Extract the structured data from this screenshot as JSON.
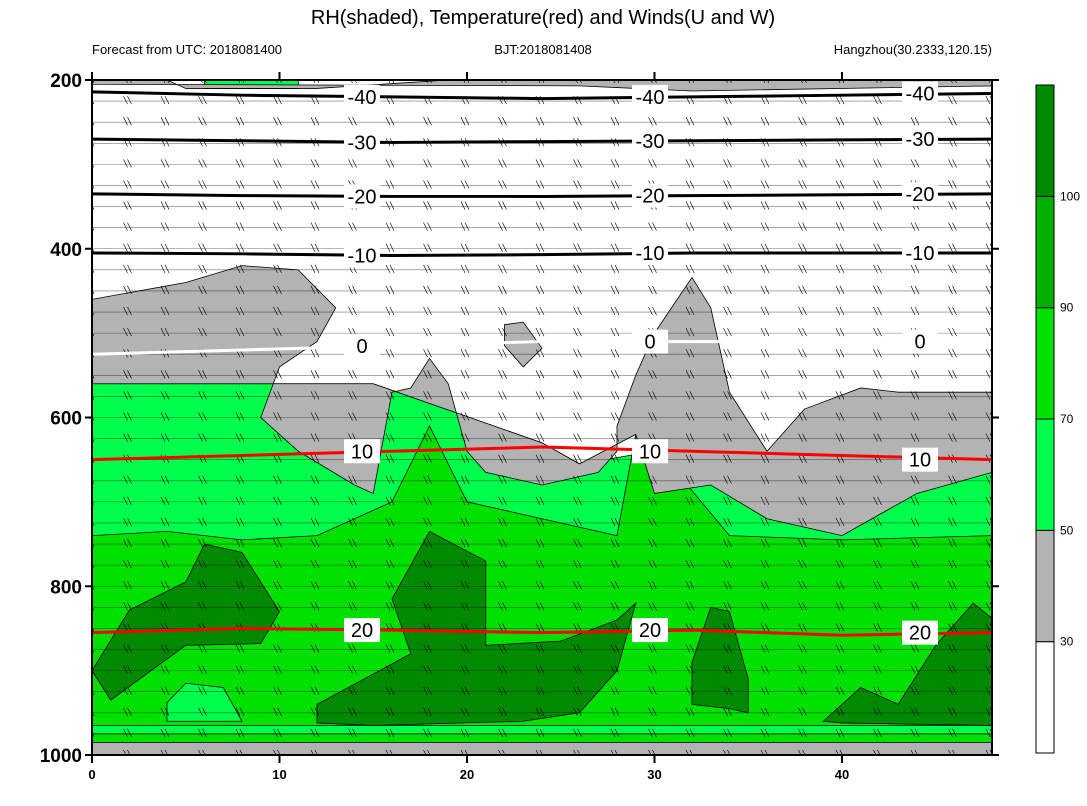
{
  "chart_data": {
    "type": "contour",
    "title": "RH(shaded), Temperature(red) and Winds(U and W)",
    "subtitle_left": "Forecast from UTC: 2018081400",
    "subtitle_center": "BJT:2018081408",
    "subtitle_right": "Hangzhou(30.2333,120.15)",
    "x": {
      "range": [
        0,
        48
      ],
      "ticks": [
        0,
        10,
        20,
        30,
        40
      ],
      "tick_labels": [
        "0",
        "10",
        "20",
        "30",
        "40"
      ]
    },
    "y": {
      "scale": "linear",
      "inverted": true,
      "range": [
        200,
        1000
      ],
      "ticks": [
        200,
        400,
        600,
        800,
        1000
      ],
      "tick_labels": [
        "200",
        "400",
        "600",
        "800",
        "1000"
      ]
    },
    "rh_colorbar": {
      "levels": [
        30,
        50,
        70,
        90,
        100
      ],
      "labels": [
        "30",
        "50",
        "70",
        "90",
        "100"
      ],
      "colors": [
        "#ffffff",
        "#b3b3b3",
        "#00ff4c",
        "#00e100",
        "#00b000",
        "#008a00"
      ]
    },
    "rh_shading": [
      {
        "color": "#00ff4c",
        "polygon": [
          [
            0,
            560
          ],
          [
            15,
            560
          ],
          [
            24,
            630
          ],
          [
            26,
            655
          ],
          [
            30,
            640
          ],
          [
            38,
            700
          ],
          [
            48,
            665
          ],
          [
            48,
            1000
          ],
          [
            0,
            1000
          ]
        ]
      },
      {
        "color": "#00e100",
        "polygon": [
          [
            0,
            740
          ],
          [
            4,
            735
          ],
          [
            8,
            745
          ],
          [
            12,
            740
          ],
          [
            16,
            700
          ],
          [
            18,
            610
          ],
          [
            20,
            700
          ],
          [
            24,
            720
          ],
          [
            28,
            740
          ],
          [
            29,
            620
          ],
          [
            31,
            660
          ],
          [
            34,
            740
          ],
          [
            40,
            745
          ],
          [
            48,
            740
          ],
          [
            48,
            965
          ],
          [
            0,
            965
          ]
        ]
      },
      {
        "color": "#008a00",
        "polygon": [
          [
            0,
            900
          ],
          [
            2,
            828
          ],
          [
            5,
            795
          ],
          [
            6,
            750
          ],
          [
            8,
            760
          ],
          [
            10,
            830
          ],
          [
            9,
            868
          ],
          [
            5,
            870
          ],
          [
            1,
            935
          ]
        ]
      },
      {
        "color": "#008a00",
        "polygon": [
          [
            12,
            940
          ],
          [
            17,
            880
          ],
          [
            16,
            815
          ],
          [
            18,
            735
          ],
          [
            21,
            770
          ],
          [
            21,
            870
          ],
          [
            25,
            865
          ],
          [
            28,
            840
          ],
          [
            29,
            820
          ],
          [
            28,
            900
          ],
          [
            26,
            950
          ],
          [
            23,
            960
          ],
          [
            15,
            965
          ],
          [
            12,
            962
          ]
        ]
      },
      {
        "color": "#008a00",
        "polygon": [
          [
            32,
            890
          ],
          [
            33,
            825
          ],
          [
            34,
            830
          ],
          [
            35,
            910
          ],
          [
            35,
            950
          ],
          [
            34,
            945
          ],
          [
            32,
            940
          ]
        ]
      },
      {
        "color": "#008a00",
        "polygon": [
          [
            39,
            960
          ],
          [
            41,
            920
          ],
          [
            43,
            940
          ],
          [
            45,
            870
          ],
          [
            47,
            820
          ],
          [
            48,
            838
          ],
          [
            48,
            965
          ],
          [
            40,
            962
          ]
        ]
      },
      {
        "color": "#00ff4c",
        "polygon": [
          [
            4,
            938
          ],
          [
            5,
            915
          ],
          [
            7,
            920
          ],
          [
            8,
            960
          ],
          [
            4,
            960
          ]
        ]
      },
      {
        "color": "#00e100",
        "polygon": [
          [
            0,
            975
          ],
          [
            48,
            975
          ],
          [
            48,
            985
          ],
          [
            0,
            985
          ]
        ]
      },
      {
        "color": "#00ff4c",
        "polygon": [
          [
            6,
            210
          ],
          [
            11,
            210
          ],
          [
            11,
            200
          ],
          [
            6,
            200
          ]
        ]
      },
      {
        "color": "#00ff4c",
        "polygon": [
          [
            42,
            207
          ],
          [
            48,
            207
          ],
          [
            48,
            200
          ],
          [
            42,
            200
          ]
        ]
      },
      {
        "color": "#00ff4c",
        "polygon": [
          [
            7,
            503
          ],
          [
            10,
            500
          ],
          [
            10,
            530
          ],
          [
            8,
            531
          ]
        ]
      }
    ],
    "gray_regions": [
      {
        "color": "#b3b3b3",
        "polygon": [
          [
            0,
            460
          ],
          [
            5,
            440
          ],
          [
            8,
            420
          ],
          [
            11,
            425
          ],
          [
            13,
            470
          ],
          [
            12,
            510
          ],
          [
            10,
            540
          ],
          [
            9,
            600
          ],
          [
            11,
            640
          ],
          [
            14,
            680
          ],
          [
            15,
            690
          ],
          [
            16,
            570
          ],
          [
            17,
            565
          ],
          [
            18,
            530
          ],
          [
            19,
            560
          ],
          [
            20,
            640
          ],
          [
            21,
            665
          ],
          [
            24,
            680
          ],
          [
            27,
            665
          ],
          [
            28,
            640
          ],
          [
            28,
            610
          ],
          [
            29,
            550
          ],
          [
            30,
            500
          ],
          [
            31,
            467
          ],
          [
            32,
            434
          ],
          [
            33,
            470
          ],
          [
            34,
            570
          ],
          [
            36,
            640
          ],
          [
            38,
            590
          ],
          [
            41,
            565
          ],
          [
            43,
            570
          ],
          [
            48,
            570
          ],
          [
            48,
            665
          ],
          [
            44,
            690
          ],
          [
            40,
            740
          ],
          [
            36,
            720
          ],
          [
            33,
            680
          ],
          [
            30,
            690
          ],
          [
            29,
            620
          ],
          [
            26,
            655
          ],
          [
            24,
            630
          ],
          [
            15,
            560
          ],
          [
            0,
            560
          ]
        ]
      },
      {
        "color": "#b3b3b3",
        "polygon": [
          [
            0,
            985
          ],
          [
            48,
            985
          ],
          [
            48,
            1000
          ],
          [
            0,
            1000
          ]
        ]
      },
      {
        "color": "#b3b3b3",
        "polygon": [
          [
            0,
            200
          ],
          [
            4,
            200
          ],
          [
            5,
            210
          ],
          [
            12,
            210
          ],
          [
            19,
            200
          ],
          [
            48,
            200
          ],
          [
            48,
            207
          ],
          [
            32,
            213
          ],
          [
            26,
            207
          ],
          [
            0,
            205
          ]
        ]
      },
      {
        "color": "#b3b3b3",
        "polygon": [
          [
            22,
            490
          ],
          [
            23,
            487
          ],
          [
            24,
            518
          ],
          [
            23,
            540
          ],
          [
            22,
            515
          ]
        ]
      }
    ],
    "temperature_contours": [
      {
        "value": -40,
        "label": "-40",
        "y": [
          214,
          218,
          220,
          222,
          220,
          218,
          216
        ]
      },
      {
        "value": -30,
        "label": "-30",
        "y": [
          270,
          272,
          274,
          273,
          272,
          271,
          270
        ]
      },
      {
        "value": -20,
        "label": "-20",
        "y": [
          335,
          337,
          338,
          338,
          337,
          336,
          335
        ]
      },
      {
        "value": -10,
        "label": "-10",
        "y": [
          405,
          406,
          408,
          407,
          405,
          405,
          405
        ]
      },
      {
        "value": 0,
        "label": "0",
        "y": [
          525,
          520,
          515,
          510,
          510,
          510,
          510
        ]
      },
      {
        "value": 10,
        "label": "10",
        "y": [
          650,
          645,
          640,
          635,
          640,
          645,
          650
        ]
      },
      {
        "value": 20,
        "label": "20",
        "y": [
          855,
          850,
          852,
          855,
          852,
          858,
          855
        ]
      }
    ],
    "winds": {
      "pressure_levels_hPa": [
        200,
        225,
        250,
        275,
        300,
        325,
        350,
        375,
        400,
        425,
        450,
        475,
        500,
        525,
        550,
        575,
        600,
        625,
        650,
        675,
        700,
        725,
        750,
        775,
        800,
        825,
        850,
        875,
        900,
        925,
        950,
        975,
        1000
      ],
      "times": [
        0,
        2,
        4,
        6,
        8,
        10,
        12,
        14,
        16,
        18,
        20,
        22,
        24,
        26,
        28,
        30,
        32,
        34,
        36,
        38,
        40,
        42,
        44,
        46,
        48
      ]
    }
  }
}
